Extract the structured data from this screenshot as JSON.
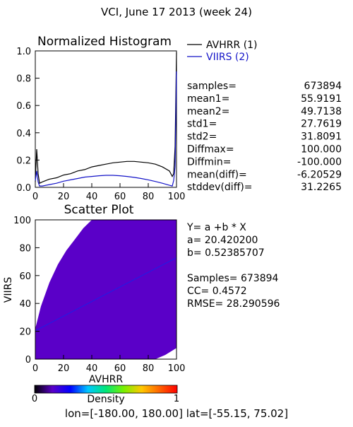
{
  "title": "VCI,  June 17 2013 (week 24)",
  "colors": {
    "avhrr": "#000000",
    "viirs": "#1414c8",
    "scatter_cloud": "#5a00c8",
    "fit_line": "#1e1ee6"
  },
  "chart_data": [
    {
      "type": "line",
      "title": "Normalized Histogram",
      "xlim": [
        0,
        100
      ],
      "ylim": [
        0,
        1.0
      ],
      "xticks": [
        "0",
        "20",
        "40",
        "60",
        "80",
        "100"
      ],
      "yticks": [
        "0.0",
        "0.2",
        "0.4",
        "0.6",
        "0.8",
        "1.0"
      ],
      "legend_position": "top-right",
      "series": [
        {
          "name": "AVHRR (1)",
          "x": [
            0,
            1,
            2,
            3,
            5,
            10,
            15,
            20,
            25,
            30,
            35,
            40,
            45,
            50,
            55,
            60,
            65,
            70,
            75,
            80,
            85,
            90,
            95,
            97,
            98,
            99,
            100
          ],
          "y": [
            0.04,
            0.28,
            0.1,
            0.03,
            0.04,
            0.06,
            0.07,
            0.09,
            0.1,
            0.12,
            0.13,
            0.15,
            0.16,
            0.17,
            0.18,
            0.185,
            0.19,
            0.19,
            0.185,
            0.18,
            0.17,
            0.15,
            0.12,
            0.08,
            0.1,
            0.3,
            0.99
          ]
        },
        {
          "name": "VIIRS (2)",
          "x": [
            0,
            1,
            2,
            3,
            5,
            10,
            15,
            20,
            25,
            30,
            35,
            40,
            45,
            50,
            55,
            60,
            65,
            70,
            75,
            80,
            85,
            90,
            95,
            97,
            98,
            99,
            100
          ],
          "y": [
            0.05,
            0.12,
            0.04,
            0.01,
            0.01,
            0.02,
            0.03,
            0.045,
            0.055,
            0.065,
            0.075,
            0.08,
            0.085,
            0.088,
            0.088,
            0.085,
            0.08,
            0.073,
            0.065,
            0.055,
            0.043,
            0.03,
            0.015,
            0.01,
            0.05,
            0.15,
            0.85
          ]
        }
      ],
      "stats": [
        {
          "label": "samples=",
          "value": "673894"
        },
        {
          "label": "mean1=",
          "value": "55.9191"
        },
        {
          "label": "mean2=",
          "value": "49.7138"
        },
        {
          "label": "std1=",
          "value": "27.7619"
        },
        {
          "label": "std2=",
          "value": "31.8091"
        },
        {
          "label": "Diffmax=",
          "value": "100.000"
        },
        {
          "label": "Diffmin=",
          "value": "-100.000"
        },
        {
          "label": "mean(diff)=",
          "value": "-6.20529"
        },
        {
          "label": "stddev(diff)=",
          "value": "31.2265"
        }
      ]
    },
    {
      "type": "scatter",
      "title": "Scatter Plot",
      "xlabel": "AVHRR",
      "ylabel": "VIIRS",
      "xlim": [
        0,
        100
      ],
      "ylim": [
        0,
        100
      ],
      "xticks": [
        "0",
        "20",
        "40",
        "60",
        "80",
        "100"
      ],
      "yticks": [
        "0",
        "20",
        "40",
        "60",
        "80",
        "100"
      ],
      "fit": {
        "a": 20.4202,
        "b": 0.52385707
      },
      "annotations": [
        "Y=  a  +b  *  X",
        "a=  20.420200",
        "b=  0.52385707",
        "Samples=  673894",
        "CC=   0.4572",
        "RMSE=  28.290596"
      ],
      "colorbar": {
        "label": "Density",
        "min_label": "0",
        "max_label": "1",
        "colors": [
          "#000000",
          "#5a00c8",
          "#0000ff",
          "#00c8ff",
          "#00e678",
          "#78f000",
          "#ffc800",
          "#ff6400",
          "#ff0000"
        ]
      }
    }
  ],
  "footer": "lon=[-180.00,  180.00]  lat=[-55.15,  75.02]"
}
